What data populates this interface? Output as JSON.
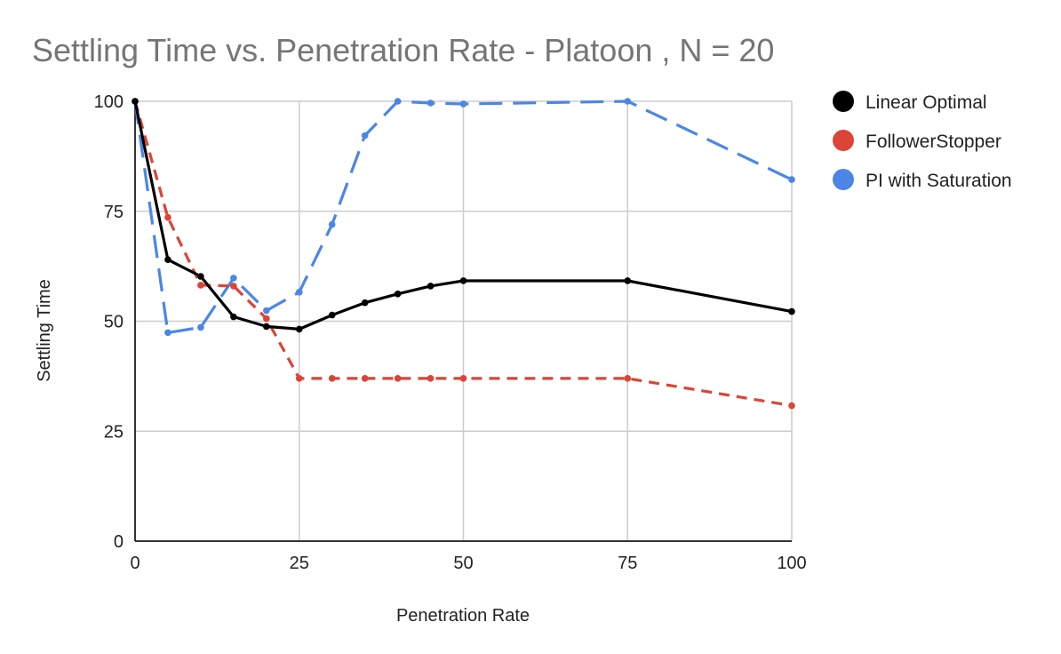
{
  "chart_data": {
    "type": "line",
    "title": "Settling Time vs. Penetration Rate - Platoon , N = 20",
    "xlabel": "Penetration Rate",
    "ylabel": "Settling Time",
    "xlim": [
      0,
      100
    ],
    "ylim": [
      0,
      100
    ],
    "xticks": [
      0,
      25,
      50,
      75,
      100
    ],
    "yticks": [
      0,
      25,
      50,
      75,
      100
    ],
    "grid": true,
    "legend_position": "right",
    "series": [
      {
        "name": "Linear Optimal",
        "color": "#000000",
        "dash": "solid",
        "x": [
          0,
          5,
          10,
          15,
          20,
          25,
          30,
          35,
          40,
          45,
          50,
          75,
          100
        ],
        "y": [
          100,
          64,
          60.2,
          51,
          48.8,
          48.2,
          51.4,
          54.2,
          56.2,
          58,
          59.2,
          59.2,
          52.2
        ]
      },
      {
        "name": "FollowerStopper",
        "color": "#db4437",
        "dash": "short",
        "x": [
          0,
          5,
          10,
          15,
          20,
          25,
          30,
          35,
          40,
          45,
          50,
          75,
          100
        ],
        "y": [
          100,
          73.6,
          58.2,
          58,
          50.6,
          37,
          37,
          37,
          37,
          37,
          37,
          37,
          30.8
        ]
      },
      {
        "name": "PI with Saturation",
        "color": "#4a86e8",
        "dash": "long",
        "x": [
          0,
          5,
          10,
          15,
          20,
          25,
          30,
          35,
          40,
          45,
          50,
          75,
          100
        ],
        "y": [
          100,
          47.4,
          48.6,
          59.8,
          52.4,
          56.6,
          72,
          92.2,
          100,
          99.6,
          99.4,
          100,
          82.2
        ]
      }
    ]
  }
}
